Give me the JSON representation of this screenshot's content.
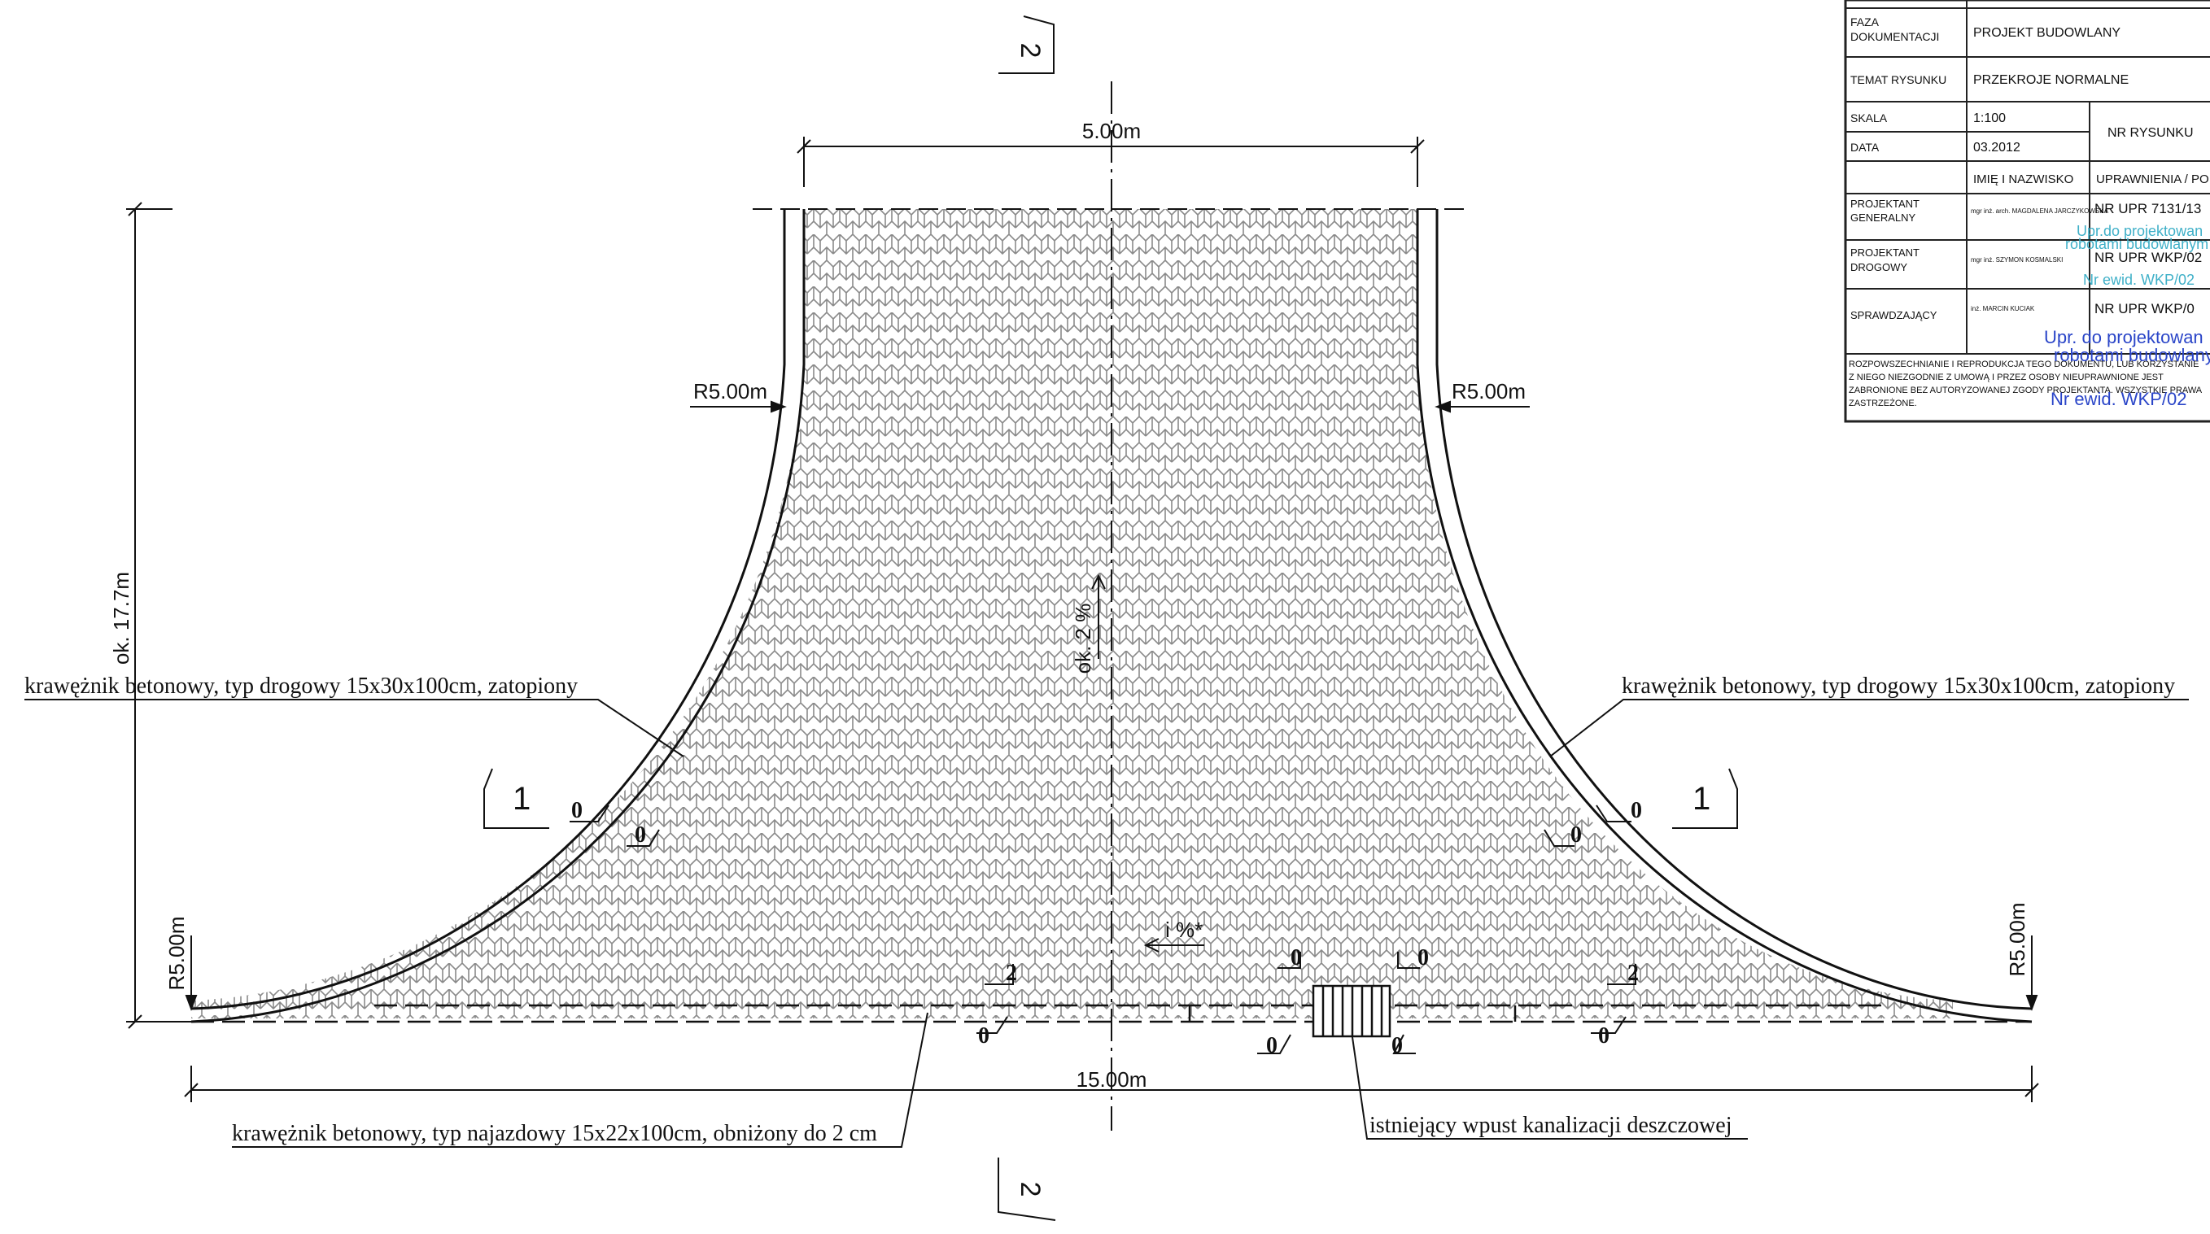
{
  "dimensions": {
    "top_width": "5.00m",
    "bottom_width": "15.00m",
    "total_length": "ok. 17.7m",
    "radius_left": "R5.00m",
    "radius_right": "R5.00m",
    "radius_left_vertical": "R5.00m",
    "radius_right_vertical": "R5.00m",
    "slope_main": "ok. 2 %",
    "slope_i": "i %*"
  },
  "labels": {
    "curb_left": "krawężnik betonowy, typ drogowy 15x30x100cm, zatopiony",
    "curb_right": "krawężnik betonowy, typ drogowy 15x30x100cm, zatopiony",
    "curb_bottom": "krawężnik betonowy, typ najazdowy 15x22x100cm, obniżony do 2 cm",
    "inlet": "istniejący wpust kanalizacji deszczowej"
  },
  "sections": {
    "top": "2",
    "bottom": "2",
    "left": "1",
    "right": "1"
  },
  "curb_heights": {
    "left_curve_a": "0",
    "left_curve_b": "0",
    "right_curve_a": "0",
    "right_curve_b": "0",
    "bottom_left_top": "2",
    "bottom_left_under": "0",
    "inlet_left_top": "0",
    "inlet_right_top": "0",
    "inlet_left_under": "0",
    "inlet_right_under": "0",
    "bottom_right_top": "2",
    "bottom_right_under": "0"
  },
  "title_block": {
    "phase_label": "FAZA DOKUMENTACJI",
    "phase_value": "PROJEKT BUDOWLANY",
    "subject_label": "TEMAT RYSUNKU",
    "subject_value": "PRZEKROJE NORMALNE",
    "scale_label": "SKALA",
    "scale_value": "1:100",
    "date_label": "DATA",
    "date_value": "03.2012",
    "drawing_no_label": "NR RYSUNKU",
    "name_header": "IMIĘ I NAZWISKO",
    "permit_header": "UPRAWNIENIA / PO",
    "general_designer_label": "PROJEKTANT GENERALNY",
    "general_designer_name": "mgr inż. arch. MAGDALENA JARCZYKOWSKA",
    "general_designer_permit": "NR UPR 7131/13",
    "road_designer_label": "PROJEKTANT DROGOWY",
    "road_designer_name": "mgr inż. SZYMON KOSMALSKI",
    "road_designer_permit": "NR UPR WKP/02",
    "checker_label": "SPRAWDZAJĄCY",
    "checker_name": "inż. MARCIN KUCIAK",
    "checker_permit": "NR UPR WKP/0",
    "copyright_notice": "ROZPOWSZECHNIANIE I REPRODUKCJA TEGO DOKUMENTU, LUB KORZYSTANIE Z NIEGO NIEZGODNIE Z UMOWĄ I PRZEZ OSOBY NIEUPRAWNIONE JEST ZABRONIONE BEZ AUTORYZOWANEJ ZGODY PROJEKTANTA. WSZYSTKIE PRAWA ZASTRZEŻONE.",
    "stamp_lines": [
      "Upr.do projektowan",
      "robotami budowlanym",
      "Nr ewid. WKP/02",
      "Upr. do projektowan",
      "robotami budowlanym",
      "Nr ewid. WKP/02"
    ],
    "stamp_colors": {
      "blue": "#2a45c8",
      "cyan": "#3fb0c8"
    }
  }
}
